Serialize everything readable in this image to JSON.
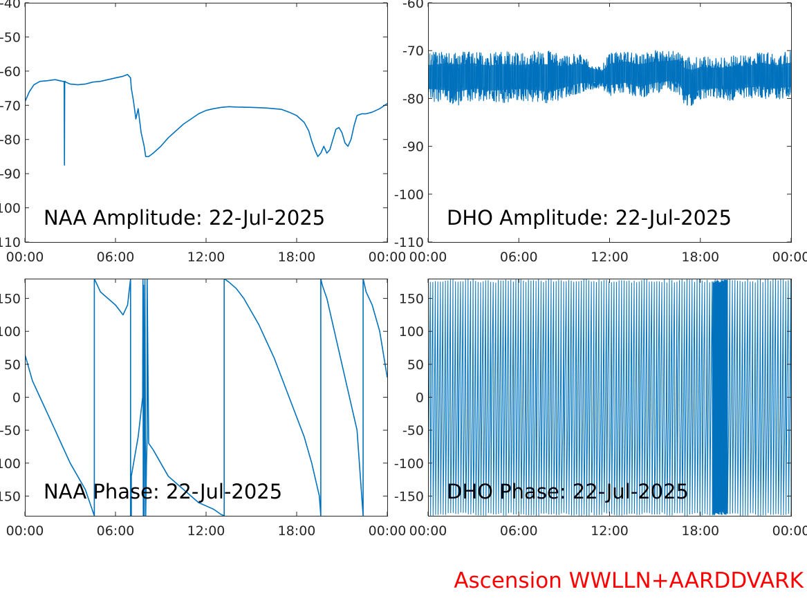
{
  "colors": {
    "trace": "#0072BD",
    "axis": "#262626",
    "footer": "#FF0000"
  },
  "footer": {
    "text": "Ascension WWLLN+AARDDVARK"
  },
  "chart_data": [
    {
      "id": "naa-amplitude",
      "type": "line",
      "annotation": "NAA Amplitude: 22-Jul-2025",
      "xlim": [
        0,
        24
      ],
      "ylim": [
        -110,
        -40
      ],
      "xticks": [
        0,
        6,
        12,
        18,
        24
      ],
      "xtick_labels": [
        "00:00",
        "06:00",
        "12:00",
        "18:00",
        "00:00"
      ],
      "yticks": [
        -110,
        -100,
        -90,
        -80,
        -70,
        -60,
        -50,
        -40
      ],
      "ytick_labels": [
        "-110",
        "-100",
        "-90",
        "-80",
        "-70",
        "-60",
        "-50",
        "-40"
      ],
      "grid": false,
      "series": [
        {
          "x": [
            0,
            0.3,
            0.6,
            1.0,
            1.5,
            2.0,
            2.5,
            2.6,
            2.62,
            2.64,
            2.66,
            2.7,
            3.0,
            3.5,
            4.0,
            4.5,
            5.0,
            5.5,
            6.0,
            6.5,
            6.8,
            7.0,
            7.05,
            7.2,
            7.35,
            7.5,
            7.7,
            7.9,
            8.0,
            8.2,
            8.5,
            9.0,
            9.5,
            10.0,
            10.5,
            11.0,
            11.5,
            12.0,
            12.5,
            13.0,
            13.5,
            14.0,
            15.0,
            16.0,
            17.0,
            17.5,
            18.0,
            18.5,
            18.8,
            19.0,
            19.2,
            19.4,
            19.6,
            19.8,
            20.0,
            20.2,
            20.4,
            20.6,
            20.8,
            21.0,
            21.2,
            21.4,
            21.6,
            21.8,
            22.0,
            22.3,
            22.6,
            23.0,
            23.5,
            24.0
          ],
          "y": [
            -69,
            -66,
            -64,
            -63,
            -62.8,
            -62.5,
            -63,
            -63,
            -87.5,
            -63,
            -63,
            -63.2,
            -63.8,
            -64,
            -63.8,
            -63.2,
            -63,
            -62.5,
            -62,
            -61.5,
            -61,
            -62,
            -65,
            -69,
            -74,
            -71,
            -78,
            -82,
            -85,
            -85,
            -84,
            -82,
            -79.5,
            -77.5,
            -75.5,
            -74,
            -72.5,
            -71.5,
            -71,
            -70.6,
            -70.4,
            -70.5,
            -70.6,
            -70.8,
            -71.2,
            -72,
            -73,
            -75,
            -77.5,
            -80.5,
            -83,
            -85,
            -84,
            -82,
            -84,
            -83,
            -80,
            -77,
            -76.5,
            -78,
            -81,
            -82,
            -80,
            -76,
            -73,
            -72.5,
            -72.5,
            -72,
            -71,
            -69.5
          ]
        }
      ]
    },
    {
      "id": "dho-amplitude",
      "type": "line",
      "annotation": "DHO Amplitude: 22-Jul-2025",
      "xlim": [
        0,
        24
      ],
      "ylim": [
        -110,
        -60
      ],
      "xticks": [
        0,
        6,
        12,
        18,
        24
      ],
      "xtick_labels": [
        "00:00",
        "06:00",
        "12:00",
        "18:00",
        "00:00"
      ],
      "yticks": [
        -110,
        -100,
        -90,
        -80,
        -70,
        -60
      ],
      "ytick_labels": [
        "-110",
        "-100",
        "-90",
        "-80",
        "-70",
        "-60"
      ],
      "grid": false,
      "band": {
        "x": [
          0,
          1,
          2,
          3,
          4,
          5,
          6,
          7,
          8,
          9,
          10,
          11,
          11.5,
          12,
          13,
          14,
          15,
          16,
          16.5,
          17,
          17.5,
          18,
          19,
          20,
          21,
          22,
          23,
          24
        ],
        "upper": [
          -70.5,
          -70,
          -70,
          -70,
          -70.5,
          -70,
          -70.5,
          -70,
          -70,
          -71,
          -70.5,
          -72.5,
          -73,
          -70.5,
          -70,
          -70.5,
          -70,
          -70,
          -69.5,
          -71,
          -71.5,
          -71,
          -71.5,
          -71,
          -71,
          -70,
          -70.5,
          -70
        ],
        "lower": [
          -80.5,
          -81,
          -81.5,
          -80.5,
          -81,
          -81,
          -80.5,
          -81,
          -81.5,
          -80,
          -79,
          -78,
          -78,
          -79.5,
          -79,
          -80,
          -79,
          -78.5,
          -79,
          -82,
          -81.5,
          -80.5,
          -80,
          -80.5,
          -80,
          -80,
          -80.5,
          -80
        ]
      }
    },
    {
      "id": "naa-phase",
      "type": "line",
      "annotation": "NAA Phase: 22-Jul-2025",
      "xlim": [
        0,
        24
      ],
      "ylim": [
        -180,
        180
      ],
      "xticks": [
        0,
        6,
        12,
        18,
        24
      ],
      "xtick_labels": [
        "00:00",
        "06:00",
        "12:00",
        "18:00",
        "00:00"
      ],
      "yticks": [
        -150,
        -100,
        -50,
        0,
        50,
        100,
        150
      ],
      "ytick_labels": [
        "-150",
        "-100",
        "-50",
        "0",
        "50",
        "100",
        "150"
      ],
      "grid": false,
      "series": [
        {
          "x": [
            0,
            0.5,
            1,
            1.5,
            2,
            2.5,
            3,
            3.5,
            4,
            4.6,
            4.6,
            5,
            5.5,
            6,
            6.5,
            6.8,
            7.0,
            7.0,
            7.05,
            7.05,
            7.5,
            7.8,
            7.82,
            7.84,
            7.86,
            7.9,
            7.95,
            8.0,
            8.05,
            8.1,
            8.1,
            8.2,
            8.5,
            9.0,
            9.5,
            10,
            10.5,
            11,
            11.5,
            12,
            12.5,
            13,
            13.2,
            13.2,
            13.5,
            14,
            14.5,
            15,
            15.5,
            16,
            16.5,
            17,
            17.5,
            18,
            18.5,
            19,
            19.5,
            19.6,
            19.6,
            19.7,
            20.0,
            20.5,
            21,
            21.5,
            22,
            22.4,
            22.4,
            22.6,
            23,
            23.5,
            24
          ],
          "y": [
            65,
            25,
            0,
            -25,
            -50,
            -75,
            -100,
            -120,
            -140,
            -180,
            180,
            160,
            150,
            140,
            125,
            140,
            180,
            -180,
            -180,
            -120,
            -60,
            0,
            180,
            -180,
            170,
            -180,
            180,
            -180,
            -100,
            -60,
            180,
            -70,
            -80,
            -100,
            -120,
            -130,
            -140,
            -150,
            -160,
            -165,
            -170,
            -178,
            -180,
            180,
            175,
            165,
            150,
            130,
            110,
            85,
            60,
            30,
            0,
            -30,
            -60,
            -100,
            -150,
            -180,
            180,
            170,
            150,
            100,
            50,
            0,
            -50,
            -180,
            180,
            160,
            140,
            100,
            30
          ]
        }
      ]
    },
    {
      "id": "dho-phase",
      "type": "line",
      "annotation": "DHO Phase: 22-Jul-2025",
      "xlim": [
        0,
        24
      ],
      "ylim": [
        -180,
        180
      ],
      "xticks": [
        0,
        6,
        12,
        18,
        24
      ],
      "xtick_labels": [
        "00:00",
        "06:00",
        "12:00",
        "18:00",
        "00:00"
      ],
      "yticks": [
        -150,
        -100,
        -50,
        0,
        50,
        100,
        150
      ],
      "ytick_labels": [
        "-150",
        "-100",
        "-50",
        "0",
        "50",
        "100",
        "150"
      ],
      "grid": false,
      "wrap_segments": [
        {
          "x_start": 0,
          "x_end": 18.8,
          "wraps_per_hour": 6
        },
        {
          "x_start": 18.8,
          "x_end": 19.8,
          "wraps_per_hour": 22
        },
        {
          "x_start": 19.8,
          "x_end": 24,
          "wraps_per_hour": 6
        }
      ]
    }
  ]
}
